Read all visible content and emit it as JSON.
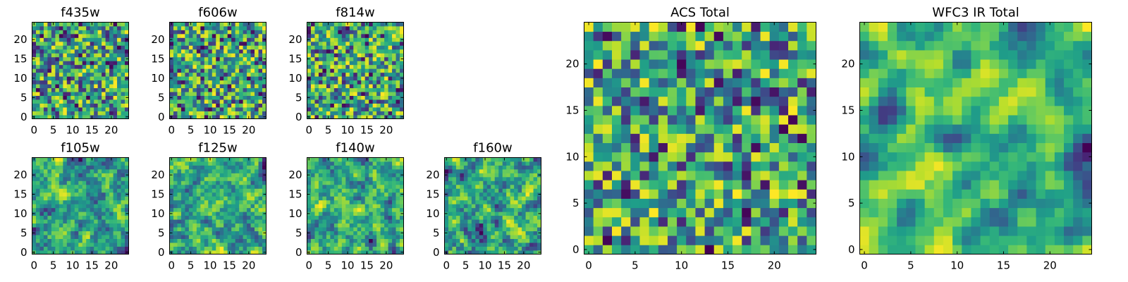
{
  "chart_data": [
    {
      "type": "heatmap",
      "title": "f435w",
      "xlim": [
        0,
        24
      ],
      "ylim": [
        0,
        24
      ],
      "xticks": [
        0,
        5,
        10,
        15,
        20
      ],
      "yticks": [
        0,
        5,
        10,
        15,
        20
      ],
      "grid": false,
      "colormap": "viridis",
      "seed": 11,
      "smooth": 0,
      "xticklabels": [
        "0",
        "5",
        "10",
        "15",
        "20"
      ],
      "yticklabels": [
        "0",
        "5",
        "10",
        "15",
        "20"
      ]
    },
    {
      "type": "heatmap",
      "title": "f606w",
      "xlim": [
        0,
        24
      ],
      "ylim": [
        0,
        24
      ],
      "xticks": [
        0,
        5,
        10,
        15,
        20
      ],
      "yticks": [
        0,
        5,
        10,
        15,
        20
      ],
      "grid": false,
      "colormap": "viridis",
      "seed": 23,
      "smooth": 0,
      "xticklabels": [
        "0",
        "5",
        "10",
        "15",
        "20"
      ],
      "yticklabels": [
        "0",
        "5",
        "10",
        "15",
        "20"
      ]
    },
    {
      "type": "heatmap",
      "title": "f814w",
      "xlim": [
        0,
        24
      ],
      "ylim": [
        0,
        24
      ],
      "xticks": [
        0,
        5,
        10,
        15,
        20
      ],
      "yticks": [
        0,
        5,
        10,
        15,
        20
      ],
      "grid": false,
      "colormap": "viridis",
      "seed": 37,
      "smooth": 0,
      "xticklabels": [
        "0",
        "5",
        "10",
        "15",
        "20"
      ],
      "yticklabels": [
        "0",
        "5",
        "10",
        "15",
        "20"
      ]
    },
    {
      "type": "heatmap",
      "title": "f105w",
      "xlim": [
        0,
        24
      ],
      "ylim": [
        0,
        24
      ],
      "xticks": [
        0,
        5,
        10,
        15,
        20
      ],
      "yticks": [
        0,
        5,
        10,
        15,
        20
      ],
      "grid": false,
      "colormap": "viridis",
      "seed": 41,
      "smooth": 1,
      "xticklabels": [
        "0",
        "5",
        "10",
        "15",
        "20"
      ],
      "yticklabels": [
        "0",
        "5",
        "10",
        "15",
        "20"
      ]
    },
    {
      "type": "heatmap",
      "title": "f125w",
      "xlim": [
        0,
        24
      ],
      "ylim": [
        0,
        24
      ],
      "xticks": [
        0,
        5,
        10,
        15,
        20
      ],
      "yticks": [
        0,
        5,
        10,
        15,
        20
      ],
      "grid": false,
      "colormap": "viridis",
      "seed": 53,
      "smooth": 1,
      "xticklabels": [
        "0",
        "5",
        "10",
        "15",
        "20"
      ],
      "yticklabels": [
        "0",
        "5",
        "10",
        "15",
        "20"
      ]
    },
    {
      "type": "heatmap",
      "title": "f140w",
      "xlim": [
        0,
        24
      ],
      "ylim": [
        0,
        24
      ],
      "xticks": [
        0,
        5,
        10,
        15,
        20
      ],
      "yticks": [
        0,
        5,
        10,
        15,
        20
      ],
      "grid": false,
      "colormap": "viridis",
      "seed": 67,
      "smooth": 1,
      "xticklabels": [
        "0",
        "5",
        "10",
        "15",
        "20"
      ],
      "yticklabels": [
        "0",
        "5",
        "10",
        "15",
        "20"
      ]
    },
    {
      "type": "heatmap",
      "title": "f160w",
      "xlim": [
        0,
        24
      ],
      "ylim": [
        0,
        24
      ],
      "xticks": [
        0,
        5,
        10,
        15,
        20
      ],
      "yticks": [
        0,
        5,
        10,
        15,
        20
      ],
      "grid": false,
      "colormap": "viridis",
      "seed": 79,
      "smooth": 1,
      "xticklabels": [
        "0",
        "5",
        "10",
        "15",
        "20"
      ],
      "yticklabels": [
        "0",
        "5",
        "10",
        "15",
        "20"
      ]
    },
    {
      "type": "heatmap",
      "title": "ACS Total",
      "xlim": [
        0,
        24
      ],
      "ylim": [
        0,
        24
      ],
      "xticks": [
        0,
        5,
        10,
        15,
        20
      ],
      "yticks": [
        0,
        5,
        10,
        15,
        20
      ],
      "grid": false,
      "colormap": "viridis",
      "seed": 97,
      "smooth": 0,
      "xticklabels": [
        "0",
        "5",
        "10",
        "15",
        "20"
      ],
      "yticklabels": [
        "0",
        "5",
        "10",
        "15",
        "20"
      ]
    },
    {
      "type": "heatmap",
      "title": "WFC3 IR Total",
      "xlim": [
        0,
        24
      ],
      "ylim": [
        0,
        24
      ],
      "xticks": [
        0,
        5,
        10,
        15,
        20
      ],
      "yticks": [
        0,
        5,
        10,
        15,
        20
      ],
      "grid": false,
      "colormap": "viridis",
      "seed": 113,
      "smooth": 2,
      "xticklabels": [
        "0",
        "5",
        "10",
        "15",
        "20"
      ],
      "yticklabels": [
        "0",
        "5",
        "10",
        "15",
        "20"
      ]
    }
  ]
}
